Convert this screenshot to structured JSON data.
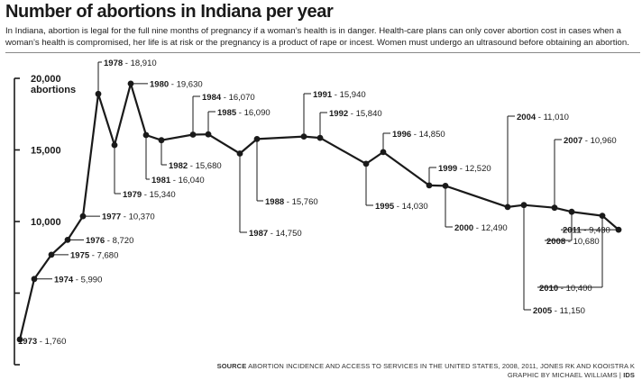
{
  "header": {
    "title": "Number of abortions in Indiana per year",
    "subtitle": "In Indiana, abortion is legal for the full nine months of pregnancy if a woman’s health is in danger. Health-care plans can only cover abortion cost in cases when a woman’s health is compromised, her life is at risk or the pregnancy is a product of rape or incest. Women must undergo an ultrasound before obtaining an abortion."
  },
  "footer": {
    "source_label": "SOURCE",
    "source_text": "ABORTION INCIDENCE AND ACCESS TO SERVICES IN THE UNITED STATES, 2008, 2011, JONES RK AND KOOISTRA K",
    "credit_text": "GRAPHIC BY MICHAEL WILLIAMS |",
    "credit_org": "IDS"
  },
  "chart_data": {
    "type": "line",
    "title": "Number of abortions in Indiana per year",
    "ylabel": "abortions",
    "ylim": [
      0,
      20000
    ],
    "yticks": [
      {
        "value": 20000,
        "label": "20,000"
      },
      {
        "value": 15000,
        "label": "15,000"
      },
      {
        "value": 10000,
        "label": "10,000"
      },
      {
        "value": 5000,
        "label": ""
      },
      {
        "value": 0,
        "label": ""
      }
    ],
    "series": [
      {
        "points": [
          {
            "year": "1973",
            "value": 1760,
            "value_label": "1,760"
          },
          {
            "year": "1974",
            "value": 5990,
            "value_label": "5,990"
          },
          {
            "year": "1975",
            "value": 7680,
            "value_label": "7,680"
          },
          {
            "year": "1976",
            "value": 8720,
            "value_label": "8,720"
          },
          {
            "year": "1977",
            "value": 10370,
            "value_label": "10,370"
          },
          {
            "year": "1978",
            "value": 18910,
            "value_label": "18,910"
          },
          {
            "year": "1979",
            "value": 15340,
            "value_label": "15,340"
          },
          {
            "year": "1980",
            "value": 19630,
            "value_label": "19,630"
          },
          {
            "year": "1981",
            "value": 16040,
            "value_label": "16,040"
          },
          {
            "year": "1982",
            "value": 15680,
            "value_label": "15,680"
          },
          {
            "year": "1984",
            "value": 16070,
            "value_label": "16,070"
          },
          {
            "year": "1985",
            "value": 16090,
            "value_label": "16,090"
          },
          {
            "year": "1987",
            "value": 14750,
            "value_label": "14,750"
          },
          {
            "year": "1988",
            "value": 15760,
            "value_label": "15,760"
          },
          {
            "year": "1991",
            "value": 15940,
            "value_label": "15,940"
          },
          {
            "year": "1992",
            "value": 15840,
            "value_label": "15,840"
          },
          {
            "year": "1995",
            "value": 14030,
            "value_label": "14,030"
          },
          {
            "year": "1996",
            "value": 14850,
            "value_label": "14,850"
          },
          {
            "year": "1999",
            "value": 12520,
            "value_label": "12,520"
          },
          {
            "year": "2000",
            "value": 12490,
            "value_label": "12,490"
          },
          {
            "year": "2004",
            "value": 11010,
            "value_label": "11,010"
          },
          {
            "year": "2005",
            "value": 11150,
            "value_label": "11,150"
          },
          {
            "year": "2007",
            "value": 10960,
            "value_label": "10,960"
          },
          {
            "year": "2008",
            "value": 10680,
            "value_label": "10,680"
          },
          {
            "year": "2010",
            "value": 10400,
            "value_label": "10,400"
          },
          {
            "year": "2011",
            "value": 9430,
            "value_label": "9,430"
          }
        ]
      }
    ],
    "grid": false,
    "legend": "none"
  }
}
